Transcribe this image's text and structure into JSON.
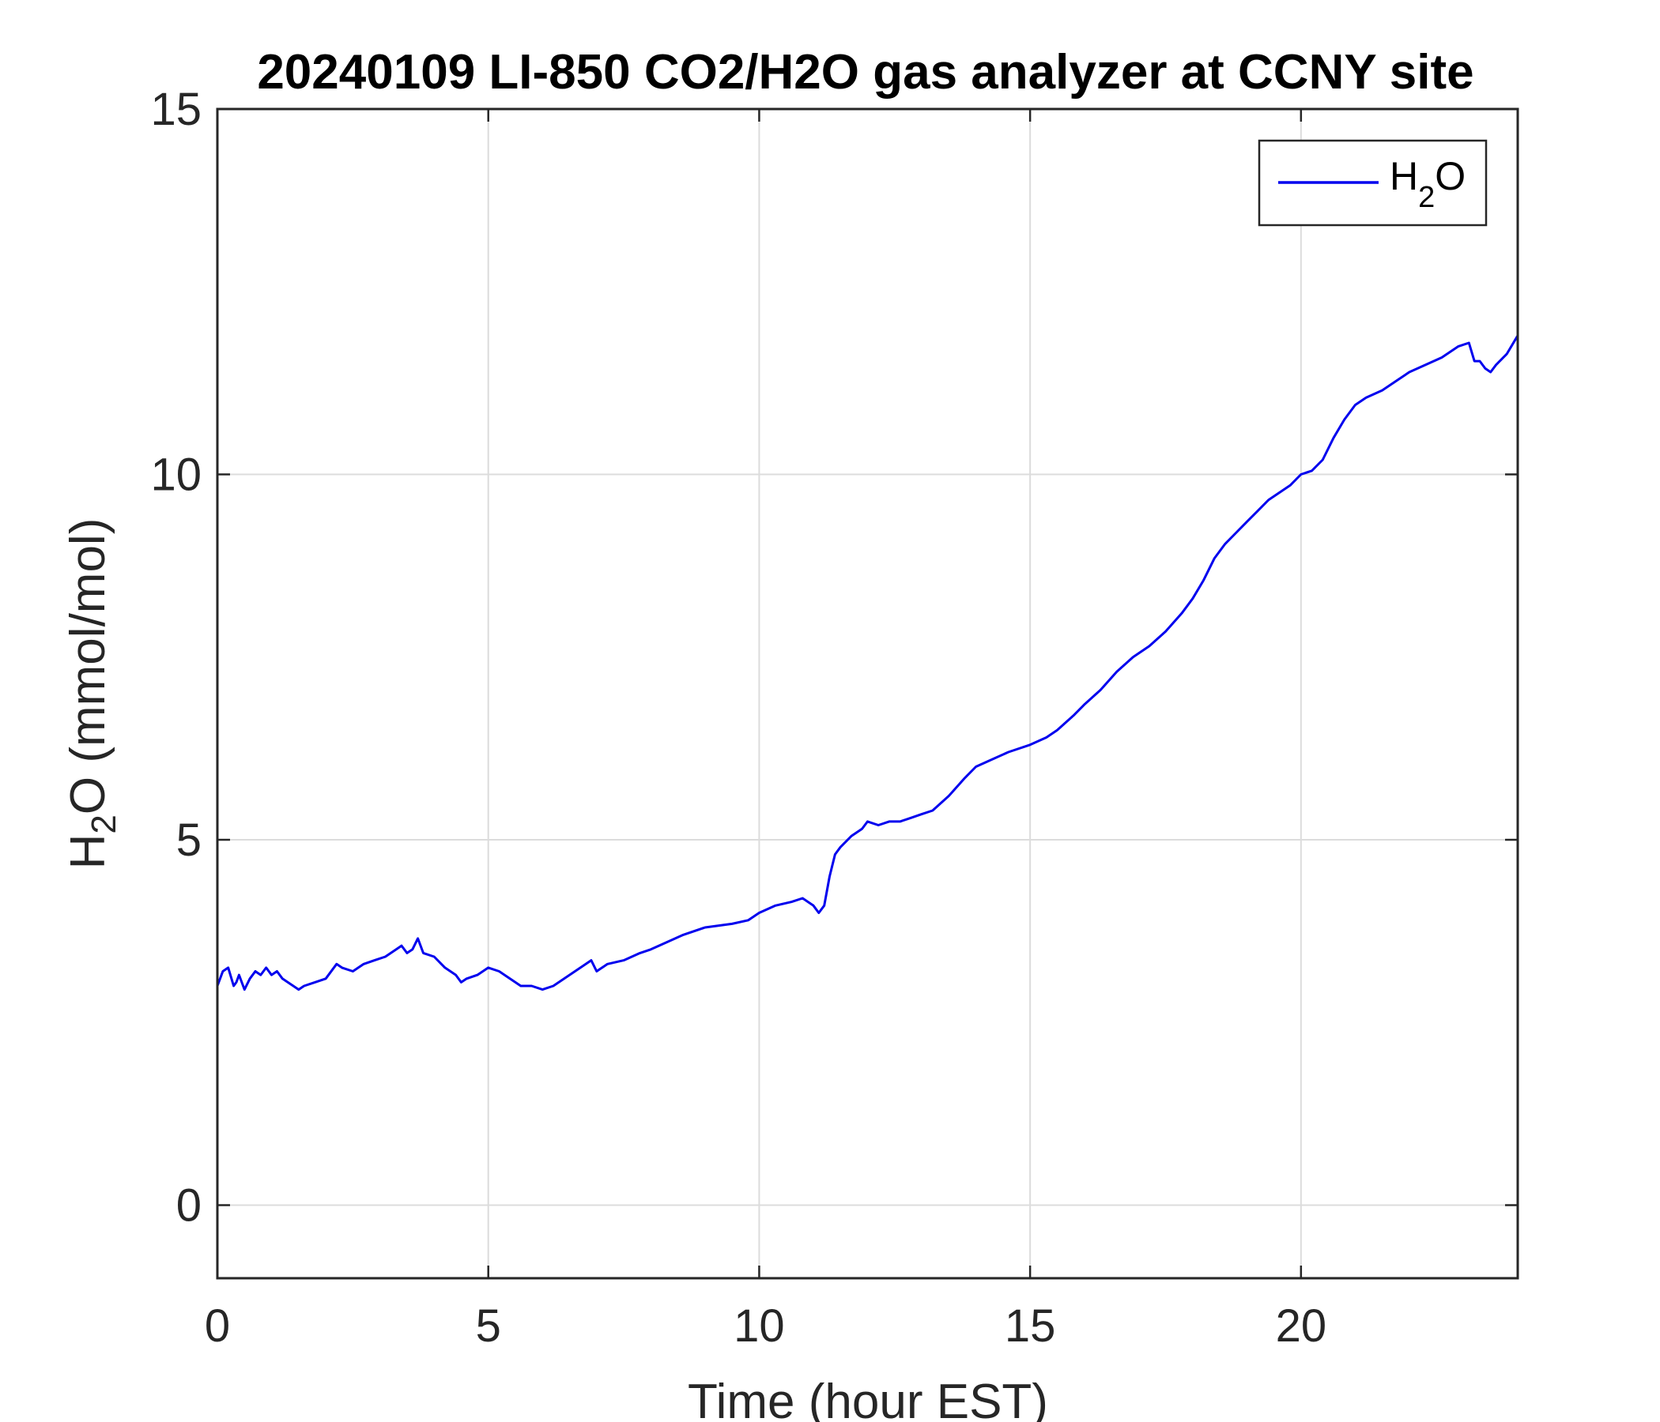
{
  "chart_data": {
    "type": "line",
    "title": "20240109 LI-850 CO2/H2O gas analyzer at CCNY site",
    "xlabel": "Time (hour EST)",
    "ylabel": "H2O (mmol/mol)",
    "ylabel_parts": {
      "pre": "H",
      "sub": "2",
      "post": "O (mmol/mol)"
    },
    "xlim": [
      0,
      24
    ],
    "ylim": [
      -1,
      15
    ],
    "xticks": [
      0,
      5,
      10,
      15,
      20
    ],
    "yticks": [
      0,
      5,
      10,
      15
    ],
    "xtick_labels": [
      "0",
      "5",
      "10",
      "15",
      "20"
    ],
    "ytick_labels": [
      "0",
      "5",
      "10",
      "15"
    ],
    "grid": true,
    "legend_position": "top-right",
    "legend_parts": {
      "pre": "H",
      "sub": "2",
      "post": "O"
    },
    "series": [
      {
        "name": "H2O",
        "color": "#0000ee",
        "x": [
          0,
          0.1,
          0.2,
          0.3,
          0.35,
          0.4,
          0.5,
          0.6,
          0.7,
          0.8,
          0.9,
          1.0,
          1.1,
          1.2,
          1.3,
          1.4,
          1.5,
          1.6,
          1.8,
          2.0,
          2.2,
          2.3,
          2.5,
          2.7,
          2.9,
          3.1,
          3.3,
          3.4,
          3.5,
          3.6,
          3.7,
          3.8,
          4.0,
          4.2,
          4.4,
          4.5,
          4.6,
          4.8,
          5.0,
          5.2,
          5.4,
          5.6,
          5.8,
          6.0,
          6.2,
          6.4,
          6.6,
          6.8,
          6.9,
          7.0,
          7.2,
          7.5,
          7.8,
          8.0,
          8.3,
          8.6,
          9.0,
          9.5,
          9.8,
          10.0,
          10.3,
          10.6,
          10.8,
          11.0,
          11.1,
          11.2,
          11.3,
          11.4,
          11.5,
          11.7,
          11.9,
          12.0,
          12.2,
          12.4,
          12.6,
          12.8,
          13.0,
          13.2,
          13.5,
          13.8,
          14.0,
          14.3,
          14.6,
          15.0,
          15.3,
          15.5,
          15.8,
          16.0,
          16.3,
          16.6,
          16.9,
          17.2,
          17.5,
          17.8,
          18.0,
          18.2,
          18.4,
          18.6,
          18.8,
          19.0,
          19.2,
          19.4,
          19.6,
          19.8,
          20.0,
          20.2,
          20.4,
          20.6,
          20.8,
          21.0,
          21.2,
          21.5,
          21.8,
          22.0,
          22.3,
          22.6,
          22.9,
          23.1,
          23.2,
          23.3,
          23.4,
          23.5,
          23.6,
          23.8,
          24.0
        ],
        "y": [
          3.0,
          3.2,
          3.25,
          3.0,
          3.05,
          3.15,
          2.95,
          3.1,
          3.2,
          3.15,
          3.25,
          3.15,
          3.2,
          3.1,
          3.05,
          3.0,
          2.95,
          3.0,
          3.05,
          3.1,
          3.3,
          3.25,
          3.2,
          3.3,
          3.35,
          3.4,
          3.5,
          3.55,
          3.45,
          3.5,
          3.65,
          3.45,
          3.4,
          3.25,
          3.15,
          3.05,
          3.1,
          3.15,
          3.25,
          3.2,
          3.1,
          3.0,
          3.0,
          2.95,
          3.0,
          3.1,
          3.2,
          3.3,
          3.35,
          3.2,
          3.3,
          3.35,
          3.45,
          3.5,
          3.6,
          3.7,
          3.8,
          3.85,
          3.9,
          4.0,
          4.1,
          4.15,
          4.2,
          4.1,
          4.0,
          4.1,
          4.5,
          4.8,
          4.9,
          5.05,
          5.15,
          5.25,
          5.2,
          5.25,
          5.25,
          5.3,
          5.35,
          5.4,
          5.6,
          5.85,
          6.0,
          6.1,
          6.2,
          6.3,
          6.4,
          6.5,
          6.7,
          6.85,
          7.05,
          7.3,
          7.5,
          7.65,
          7.85,
          8.1,
          8.3,
          8.55,
          8.85,
          9.05,
          9.2,
          9.35,
          9.5,
          9.65,
          9.75,
          9.85,
          10.0,
          10.05,
          10.2,
          10.5,
          10.75,
          10.95,
          11.05,
          11.15,
          11.3,
          11.4,
          11.5,
          11.6,
          11.75,
          11.8,
          11.55,
          11.55,
          11.45,
          11.4,
          11.5,
          11.65,
          11.9
        ]
      }
    ]
  }
}
